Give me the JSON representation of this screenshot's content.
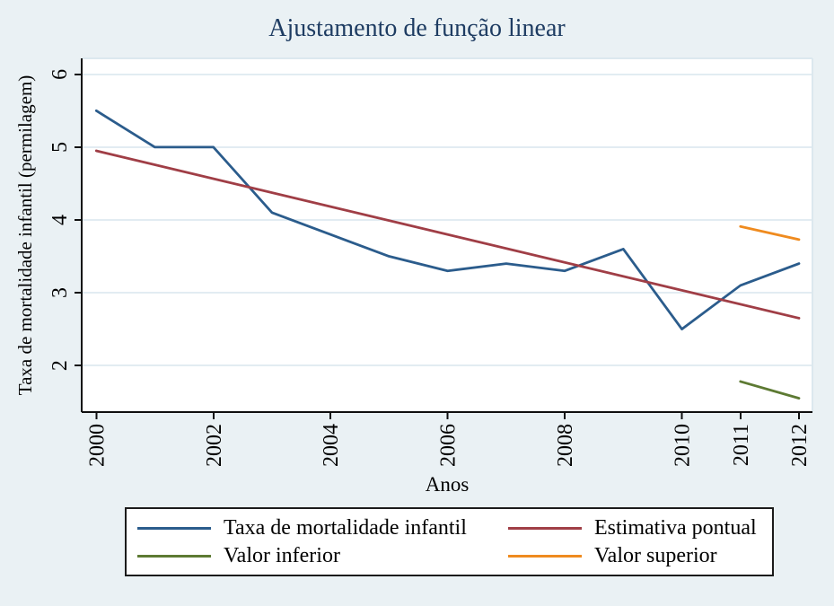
{
  "title": "Ajustamento de função linear",
  "colors": {
    "figure_background": "#eaf1f4",
    "plot_background": "#ffffff",
    "gridline": "#e2ecf2",
    "plot_border": "#dce8ee",
    "axis": "#0f0f0f",
    "title_text": "#1e3c62",
    "navy": "#2b5c8c",
    "maroon": "#a03e46",
    "green": "#5d7a33",
    "orange": "#ef8b1f"
  },
  "chart_data": {
    "type": "line",
    "title": "Ajustamento de função linear",
    "xlabel": "Anos",
    "ylabel": "Taxa de mortalidade infantil (permilagem)",
    "xlim": [
      1999.75,
      2012.23
    ],
    "ylim": [
      1.36,
      6.22
    ],
    "x_ticks": [
      2000,
      2002,
      2004,
      2006,
      2008,
      2010,
      2011,
      2012
    ],
    "y_ticks": [
      2,
      3,
      4,
      5,
      6
    ],
    "grid": "horizontal",
    "legend_position": "bottom",
    "series": [
      {
        "name": "Taxa de mortalidade infantil",
        "color": "#2b5c8c",
        "x": [
          2000,
          2001,
          2002,
          2003,
          2004,
          2005,
          2006,
          2007,
          2008,
          2009,
          2010,
          2011,
          2012
        ],
        "values": [
          5.5,
          5.0,
          5.0,
          4.1,
          3.8,
          3.5,
          3.3,
          3.4,
          3.3,
          3.6,
          2.5,
          3.1,
          3.4
        ]
      },
      {
        "name": "Estimativa pontual",
        "color": "#a03e46",
        "x": [
          2000,
          2012
        ],
        "values": [
          4.95,
          2.65
        ]
      },
      {
        "name": "Valor inferior",
        "color": "#5d7a33",
        "x": [
          2011,
          2012
        ],
        "values": [
          1.78,
          1.55
        ]
      },
      {
        "name": "Valor superior",
        "color": "#ef8b1f",
        "x": [
          2011,
          2012
        ],
        "values": [
          3.91,
          3.73
        ]
      }
    ]
  },
  "legend": {
    "entries": [
      {
        "label": "Taxa de mortalidade infantil",
        "color": "#2b5c8c"
      },
      {
        "label": "Estimativa pontual",
        "color": "#a03e46"
      },
      {
        "label": "Valor inferior",
        "color": "#5d7a33"
      },
      {
        "label": "Valor superior",
        "color": "#ef8b1f"
      }
    ]
  }
}
